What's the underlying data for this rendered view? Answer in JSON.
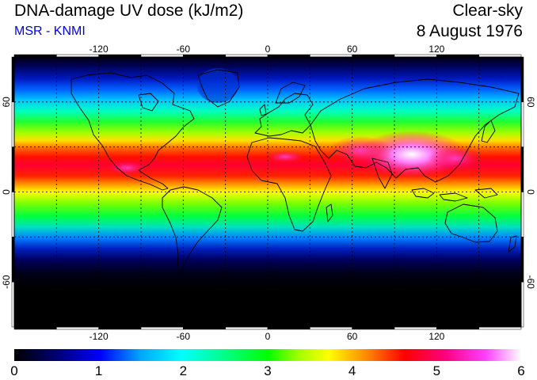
{
  "header": {
    "title": "DNA-damage UV dose (kJ/m2)",
    "subtitle": "MSR - KNMI",
    "condition": "Clear-sky",
    "date": "8 August 1976"
  },
  "map": {
    "projection": "equirectangular",
    "lon_range": [
      -180,
      180
    ],
    "lat_range": [
      -90,
      90
    ],
    "lon_ticks": [
      -120,
      -60,
      0,
      60,
      120
    ],
    "lon_tick_labels": [
      "-120",
      "-60",
      "0",
      "60",
      "120"
    ],
    "lat_ticks": [
      60,
      0,
      -60
    ],
    "lat_tick_labels": [
      "60",
      "0",
      "-60"
    ],
    "grid": "dashed, every 30 degrees"
  },
  "colorbar": {
    "min": 0,
    "max": 6,
    "tick_labels": [
      "0",
      "1",
      "2",
      "3",
      "4",
      "5",
      "6"
    ],
    "colors": [
      "#000000",
      "#000070",
      "#0000ff",
      "#00a8ff",
      "#00ffff",
      "#00ff80",
      "#00ff00",
      "#a0ff00",
      "#ffff00",
      "#ff8000",
      "#ff0000",
      "#ff0080",
      "#ff40ff",
      "#ffffff"
    ]
  }
}
